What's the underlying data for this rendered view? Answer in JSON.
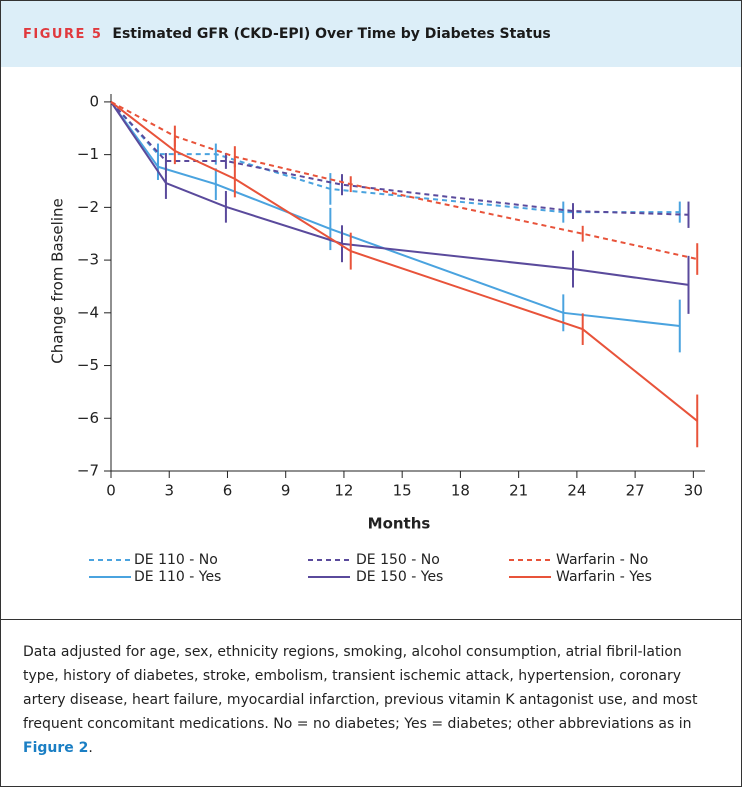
{
  "header": {
    "label": "FIGURE 5",
    "title": "Estimated GFR (CKD-EPI) Over Time by Diabetes Status"
  },
  "chart_data": {
    "type": "line",
    "xlabel": "Months",
    "ylabel": "Change from Baseline",
    "xlim": [
      0,
      30.6
    ],
    "ylim": [
      -7,
      0.15
    ],
    "xticks": [
      0,
      3,
      6,
      9,
      12,
      15,
      18,
      21,
      24,
      27,
      30
    ],
    "yticks": [
      0,
      {
        "value": -1,
        "label": "−1"
      },
      {
        "value": -2,
        "label": "−2"
      },
      {
        "value": -3,
        "label": "−3"
      },
      {
        "value": -4,
        "label": "−4"
      },
      {
        "value": -5,
        "label": "−5"
      },
      {
        "value": -6,
        "label": "−6"
      },
      {
        "value": -7,
        "label": "−7"
      }
    ],
    "series": [
      {
        "name": "DE 110 - No",
        "color": "#4aa3df",
        "dashed": true,
        "x": [
          0,
          2.42,
          5.4,
          11.3,
          23.3,
          29.3
        ],
        "values": [
          0,
          -0.99,
          -0.99,
          -1.65,
          -2.09,
          -2.09
        ],
        "errors": [
          null,
          0.2,
          0.2,
          0.3,
          0.2,
          0.2
        ]
      },
      {
        "name": "DE 110 - Yes",
        "color": "#4aa3df",
        "dashed": false,
        "x": [
          0,
          2.42,
          5.4,
          11.3,
          23.3,
          29.3
        ],
        "values": [
          0,
          -1.23,
          -1.56,
          -2.41,
          -4.0,
          -4.25
        ],
        "errors": [
          null,
          0.25,
          0.3,
          0.4,
          0.35,
          0.5
        ]
      },
      {
        "name": "DE 150 - No",
        "color": "#5a4a9c",
        "dashed": true,
        "x": [
          0,
          2.83,
          5.92,
          11.9,
          23.8,
          29.75
        ],
        "values": [
          0,
          -1.12,
          -1.12,
          -1.57,
          -2.07,
          -2.14
        ],
        "errors": [
          null,
          0.15,
          0.15,
          0.2,
          0.15,
          0.25
        ]
      },
      {
        "name": "DE 150 - Yes",
        "color": "#5a4a9c",
        "dashed": false,
        "x": [
          0,
          2.83,
          5.92,
          11.9,
          23.8,
          29.75
        ],
        "values": [
          0,
          -1.54,
          -1.99,
          -2.69,
          -3.17,
          -3.47
        ],
        "errors": [
          null,
          0.3,
          0.3,
          0.35,
          0.35,
          0.55
        ]
      },
      {
        "name": "Warfarin - No",
        "color": "#e8533a",
        "dashed": true,
        "x": [
          0,
          3.29,
          6.38,
          12.35,
          24.3,
          30.2
        ],
        "values": [
          0,
          -0.65,
          -1.04,
          -1.56,
          -2.5,
          -2.98
        ],
        "errors": [
          null,
          0.2,
          0.2,
          0.15,
          0.15,
          0.3
        ]
      },
      {
        "name": "Warfarin - Yes",
        "color": "#e8533a",
        "dashed": false,
        "x": [
          0,
          3.29,
          6.38,
          12.35,
          24.3,
          30.2
        ],
        "values": [
          0,
          -0.93,
          -1.46,
          -2.83,
          -4.31,
          -6.05
        ],
        "errors": [
          null,
          0.25,
          0.35,
          0.35,
          0.3,
          0.5
        ]
      }
    ]
  },
  "caption": {
    "text": "Data adjusted for age, sex, ethnicity regions, smoking, alcohol consumption, atrial fibril-lation type, history of diabetes, stroke, embolism, transient ischemic attack, hypertension, coronary artery disease, heart failure, myocardial infarction, previous vitamin K antagonist use, and most frequent concomitant medications. No = no diabetes; Yes = diabetes; other abbreviations as in ",
    "link": "Figure 2",
    "end": "."
  }
}
